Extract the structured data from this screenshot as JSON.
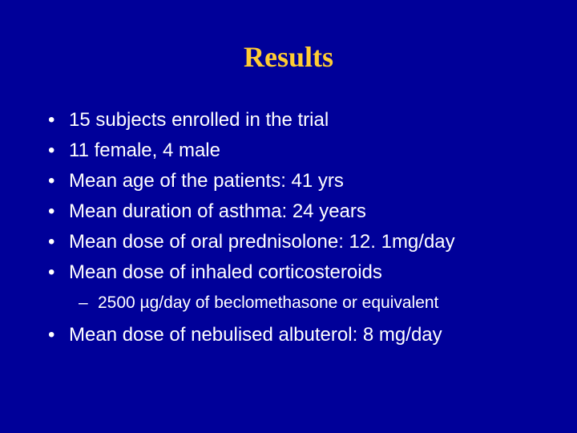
{
  "slide": {
    "title": "Results",
    "background_color": "#000099",
    "title_color": "#ffcc33",
    "text_color": "#ffffff",
    "title_fontsize": 36,
    "body_fontsize": 24,
    "sub_fontsize": 21,
    "bullets": [
      "15 subjects enrolled in the trial",
      "11 female, 4 male",
      "Mean age of the patients: 41 yrs",
      "Mean duration of asthma: 24 years",
      "Mean dose of oral prednisolone: 12. 1mg/day",
      "Mean dose of inhaled corticosteroids"
    ],
    "sub_bullet": "2500 µg/day of beclomethasone or equivalent",
    "final_bullet": "Mean dose of nebulised albuterol: 8 mg/day"
  }
}
